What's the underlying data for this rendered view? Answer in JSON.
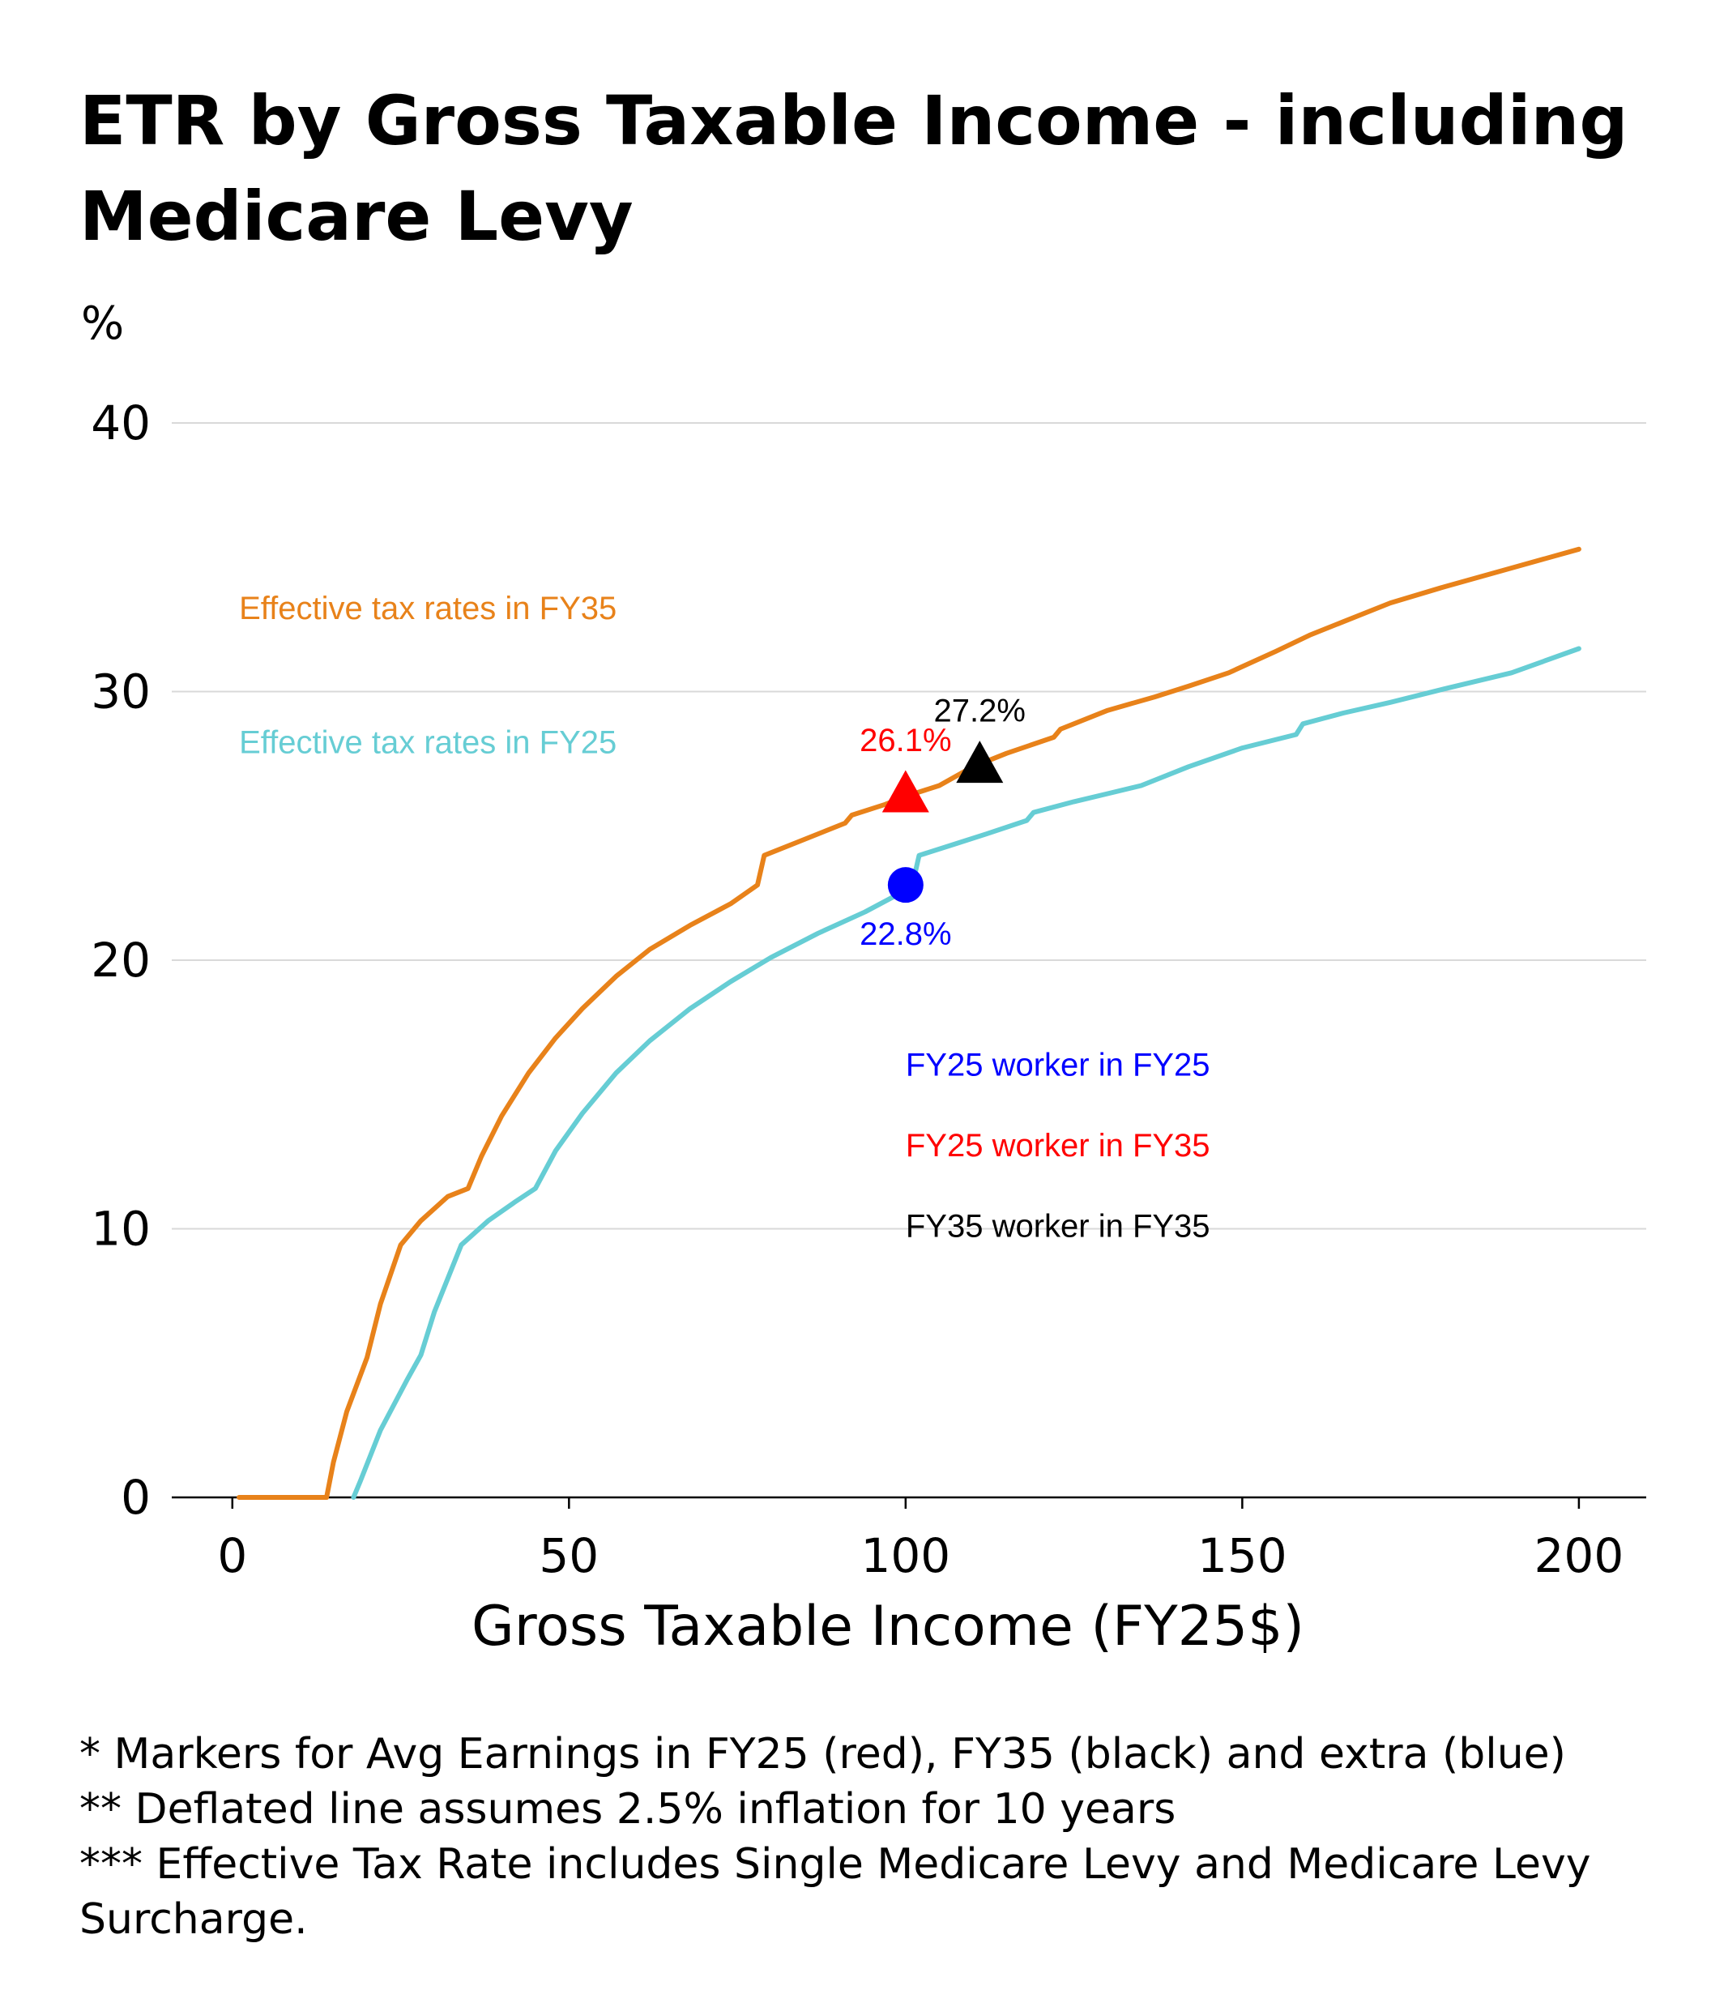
{
  "chart_data": {
    "type": "line",
    "title_lines": [
      "ETR by Gross Taxable Income - including",
      "Medicare Levy"
    ],
    "ylabel": "%",
    "xlabel": "Gross Taxable Income (FY25$)",
    "xlim": [
      -9,
      210
    ],
    "ylim": [
      0,
      40
    ],
    "xticks": [
      0,
      50,
      100,
      150,
      200
    ],
    "xtick_labels": [
      "0",
      "50",
      "100",
      "150",
      "200"
    ],
    "yticks": [
      0,
      10,
      20,
      30,
      40
    ],
    "ytick_labels": [
      "0",
      "10",
      "20",
      "30",
      "40"
    ],
    "grid": "horizontal",
    "series": [
      {
        "name": "Effective tax rates in FY35",
        "color": "#E8821A",
        "label_at": [
          1,
          32.7
        ],
        "points": [
          [
            1,
            0
          ],
          [
            14,
            0
          ],
          [
            15,
            1.3
          ],
          [
            17,
            3.2
          ],
          [
            20,
            5.2
          ],
          [
            22,
            7.2
          ],
          [
            25,
            9.4
          ],
          [
            28,
            10.3
          ],
          [
            32,
            11.2
          ],
          [
            35,
            11.5
          ],
          [
            37,
            12.7
          ],
          [
            40,
            14.2
          ],
          [
            44,
            15.8
          ],
          [
            48,
            17.1
          ],
          [
            52,
            18.2
          ],
          [
            57,
            19.4
          ],
          [
            62,
            20.4
          ],
          [
            68,
            21.3
          ],
          [
            74,
            22.1
          ],
          [
            78,
            22.8
          ],
          [
            79,
            23.9
          ],
          [
            84,
            24.4
          ],
          [
            91,
            25.1
          ],
          [
            92,
            25.4
          ],
          [
            97,
            25.8
          ],
          [
            100,
            26.1
          ],
          [
            105,
            26.5
          ],
          [
            110,
            27.2
          ],
          [
            115,
            27.7
          ],
          [
            122,
            28.3
          ],
          [
            123,
            28.6
          ],
          [
            130,
            29.3
          ],
          [
            137,
            29.8
          ],
          [
            142,
            30.2
          ],
          [
            148,
            30.7
          ],
          [
            155,
            31.5
          ],
          [
            160,
            32.1
          ],
          [
            165,
            32.6
          ],
          [
            172,
            33.3
          ],
          [
            180,
            33.9
          ],
          [
            190,
            34.6
          ],
          [
            200,
            35.3
          ]
        ]
      },
      {
        "name": "Effective tax rates in FY25",
        "color": "#66CDD4",
        "label_at": [
          1,
          27.7
        ],
        "points": [
          [
            18,
            0
          ],
          [
            19,
            0.6
          ],
          [
            22,
            2.5
          ],
          [
            26,
            4.4
          ],
          [
            28,
            5.3
          ],
          [
            30,
            6.9
          ],
          [
            34,
            9.4
          ],
          [
            38,
            10.3
          ],
          [
            42,
            11.0
          ],
          [
            45,
            11.5
          ],
          [
            48,
            12.9
          ],
          [
            52,
            14.3
          ],
          [
            57,
            15.8
          ],
          [
            62,
            17.0
          ],
          [
            68,
            18.2
          ],
          [
            74,
            19.2
          ],
          [
            80,
            20.1
          ],
          [
            87,
            21.0
          ],
          [
            94,
            21.8
          ],
          [
            100,
            22.6
          ],
          [
            101,
            22.8
          ],
          [
            102,
            23.9
          ],
          [
            107,
            24.3
          ],
          [
            112,
            24.7
          ],
          [
            118,
            25.2
          ],
          [
            119,
            25.5
          ],
          [
            125,
            25.9
          ],
          [
            130,
            26.2
          ],
          [
            135,
            26.5
          ],
          [
            142,
            27.2
          ],
          [
            150,
            27.9
          ],
          [
            158,
            28.4
          ],
          [
            159,
            28.8
          ],
          [
            165,
            29.2
          ],
          [
            172,
            29.6
          ],
          [
            180,
            30.1
          ],
          [
            190,
            30.7
          ],
          [
            200,
            31.6
          ]
        ]
      }
    ],
    "markers": [
      {
        "name": "FY25 worker in FY25",
        "shape": "circle",
        "color": "#0000FF",
        "x": 100,
        "y": 22.8,
        "label": "22.8%",
        "label_pos": "below",
        "legend_y": 15.7
      },
      {
        "name": "FY25 worker in FY35",
        "shape": "triangle",
        "color": "#FF0000",
        "x": 100,
        "y": 26.1,
        "label": "26.1%",
        "label_pos": "above",
        "legend_y": 12.7
      },
      {
        "name": "FY35 worker in FY35",
        "shape": "triangle",
        "color": "#000000",
        "x": 111,
        "y": 27.2,
        "label": "27.2%",
        "label_pos": "above",
        "legend_y": 9.7
      }
    ],
    "marker_legend_x": 100,
    "footnotes": [
      "* Markers for Avg Earnings in FY25 (red), FY35 (black) and extra (blue)",
      "** Deflated line assumes 2.5% inflation for 10 years",
      "*** Effective Tax Rate includes Single Medicare Levy and Medicare Levy",
      "Surcharge."
    ]
  }
}
